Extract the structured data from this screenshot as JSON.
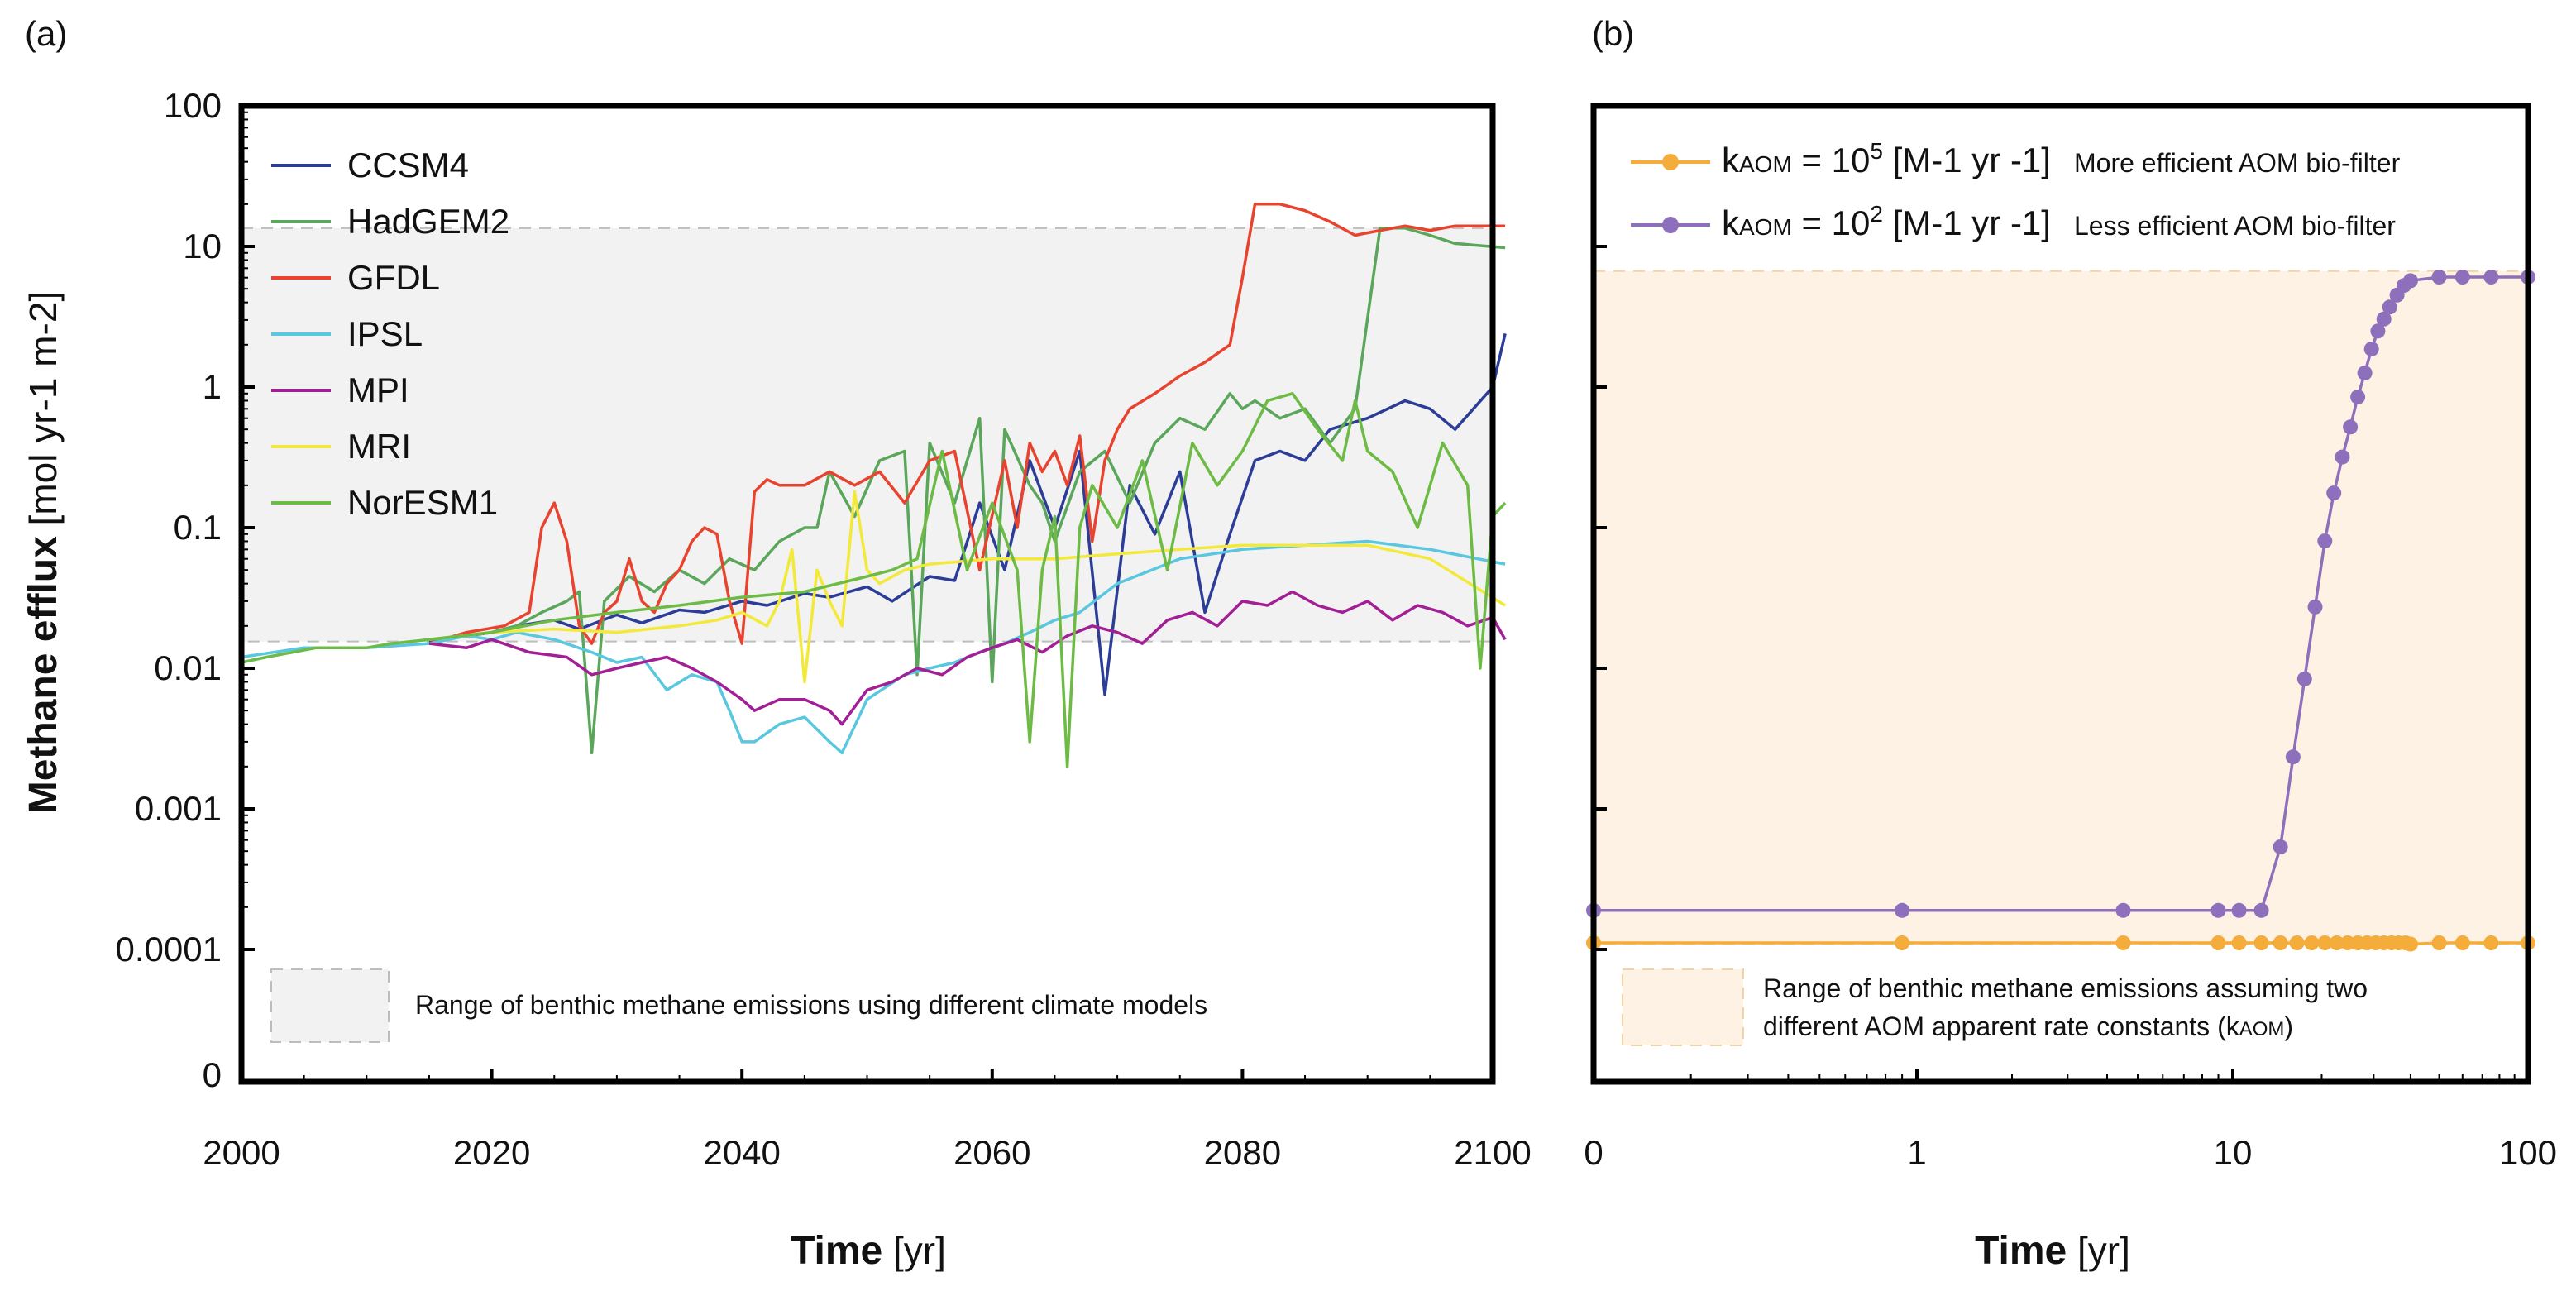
{
  "colors": {
    "CCSM4": "#2b3d97",
    "HadGEM2": "#5aa65a",
    "GFDL": "#e8432f",
    "IPSL": "#58c7df",
    "MPI": "#a21f96",
    "MRI": "#f2e93a",
    "NorESM1": "#6dbb45",
    "kaom_high": "#f4ac3a",
    "kaom_low": "#8e6fbb",
    "range_a": "#f2f2f2",
    "range_b": "#fdf2e4"
  },
  "chart_data": [
    {
      "type": "line",
      "panel_label": "(a)",
      "xlabel_bold": "Time",
      "xlabel_unit": " [yr]",
      "ylabel_bold": "Methane efflux",
      "ylabel_unit": " [mol yr-1 m-2]",
      "xlim": [
        2000,
        2100
      ],
      "x_ticks": [
        "2000",
        "2020",
        "2040",
        "2060",
        "2080",
        "2100"
      ],
      "y_scale": "log",
      "y_ticks": [
        "100",
        "10",
        "1",
        "0.1",
        "0.01",
        "0.001",
        "0.0001",
        "0"
      ],
      "range_band": [
        0.0155,
        13.5
      ],
      "range_label": "Range of benthic methane  emissions using different climate models",
      "legend_position": "top-left",
      "series": [
        {
          "name": "CCSM4",
          "x": [
            2015,
            2020,
            2022,
            2025,
            2027,
            2030,
            2032,
            2035,
            2037,
            2040,
            2042,
            2045,
            2047,
            2050,
            2052,
            2055,
            2057,
            2059,
            2061,
            2063,
            2065,
            2067,
            2069,
            2071,
            2073,
            2075,
            2077,
            2079,
            2081,
            2083,
            2085,
            2087,
            2090,
            2093,
            2095,
            2097,
            2100,
            2101
          ],
          "values": [
            0.0155,
            0.018,
            0.02,
            0.022,
            0.019,
            0.024,
            0.021,
            0.026,
            0.025,
            0.03,
            0.028,
            0.034,
            0.032,
            0.038,
            0.03,
            0.045,
            0.042,
            0.15,
            0.05,
            0.3,
            0.1,
            0.35,
            0.0065,
            0.2,
            0.09,
            0.25,
            0.025,
            0.09,
            0.3,
            0.35,
            0.3,
            0.5,
            0.6,
            0.8,
            0.7,
            0.5,
            1.0,
            2.4
          ]
        },
        {
          "name": "HadGEM2",
          "x": [
            2015,
            2018,
            2020,
            2022,
            2024,
            2026,
            2027,
            2028,
            2029,
            2031,
            2033,
            2035,
            2037,
            2039,
            2041,
            2043,
            2045,
            2046,
            2047,
            2049,
            2051,
            2053,
            2054,
            2055,
            2057,
            2059,
            2060,
            2061,
            2063,
            2064,
            2065,
            2067,
            2069,
            2071,
            2073,
            2075,
            2077,
            2079,
            2080,
            2081,
            2083,
            2085,
            2087,
            2089,
            2091,
            2093,
            2095,
            2097,
            2101
          ],
          "values": [
            0.016,
            0.017,
            0.018,
            0.02,
            0.025,
            0.03,
            0.035,
            0.0025,
            0.03,
            0.045,
            0.035,
            0.05,
            0.04,
            0.06,
            0.05,
            0.08,
            0.1,
            0.1,
            0.25,
            0.12,
            0.3,
            0.35,
            0.009,
            0.4,
            0.15,
            0.6,
            0.008,
            0.5,
            0.2,
            0.15,
            0.08,
            0.25,
            0.35,
            0.15,
            0.4,
            0.6,
            0.5,
            0.9,
            0.7,
            0.8,
            0.6,
            0.7,
            0.4,
            0.7,
            13.5,
            13.5,
            12,
            10.5,
            9.8
          ]
        },
        {
          "name": "GFDL",
          "x": [
            2015,
            2018,
            2021,
            2023,
            2024,
            2025,
            2026,
            2027,
            2028,
            2029,
            2030,
            2031,
            2032,
            2033,
            2034,
            2035,
            2036,
            2037,
            2038,
            2039,
            2040,
            2041,
            2042,
            2043,
            2045,
            2047,
            2049,
            2051,
            2053,
            2055,
            2057,
            2059,
            2061,
            2062,
            2063,
            2064,
            2065,
            2066,
            2067,
            2068,
            2069,
            2070,
            2071,
            2073,
            2075,
            2077,
            2079,
            2080,
            2081,
            2083,
            2085,
            2087,
            2089,
            2091,
            2093,
            2095,
            2097,
            2099,
            2101
          ],
          "values": [
            0.015,
            0.018,
            0.02,
            0.025,
            0.1,
            0.15,
            0.08,
            0.02,
            0.015,
            0.025,
            0.03,
            0.06,
            0.03,
            0.025,
            0.04,
            0.05,
            0.08,
            0.1,
            0.09,
            0.03,
            0.015,
            0.18,
            0.22,
            0.2,
            0.2,
            0.25,
            0.2,
            0.25,
            0.15,
            0.3,
            0.35,
            0.05,
            0.3,
            0.1,
            0.4,
            0.25,
            0.35,
            0.2,
            0.45,
            0.08,
            0.3,
            0.5,
            0.7,
            0.9,
            1.2,
            1.5,
            2.0,
            6.0,
            20,
            20,
            18,
            15,
            12,
            13,
            14,
            13,
            14,
            14,
            14
          ]
        },
        {
          "name": "IPSL",
          "x": [
            2000,
            2005,
            2010,
            2015,
            2018,
            2020,
            2022,
            2025,
            2028,
            2030,
            2032,
            2034,
            2036,
            2038,
            2039,
            2040,
            2041,
            2043,
            2045,
            2047,
            2048,
            2050,
            2053,
            2055,
            2057,
            2059,
            2061,
            2063,
            2065,
            2067,
            2070,
            2075,
            2080,
            2085,
            2090,
            2095,
            2101
          ],
          "values": [
            0.012,
            0.014,
            0.014,
            0.015,
            0.017,
            0.016,
            0.018,
            0.016,
            0.013,
            0.011,
            0.012,
            0.007,
            0.009,
            0.008,
            0.005,
            0.003,
            0.003,
            0.004,
            0.0045,
            0.003,
            0.0025,
            0.006,
            0.009,
            0.01,
            0.011,
            0.013,
            0.015,
            0.018,
            0.022,
            0.025,
            0.04,
            0.06,
            0.07,
            0.075,
            0.08,
            0.07,
            0.055
          ]
        },
        {
          "name": "MPI",
          "x": [
            2015,
            2018,
            2020,
            2023,
            2026,
            2028,
            2030,
            2032,
            2034,
            2036,
            2038,
            2040,
            2041,
            2043,
            2045,
            2047,
            2048,
            2050,
            2052,
            2054,
            2056,
            2058,
            2060,
            2062,
            2064,
            2066,
            2068,
            2070,
            2072,
            2074,
            2076,
            2078,
            2080,
            2082,
            2084,
            2086,
            2088,
            2090,
            2092,
            2094,
            2096,
            2098,
            2100,
            2101
          ],
          "values": [
            0.015,
            0.014,
            0.016,
            0.013,
            0.012,
            0.009,
            0.01,
            0.011,
            0.012,
            0.01,
            0.008,
            0.006,
            0.005,
            0.006,
            0.006,
            0.005,
            0.004,
            0.007,
            0.008,
            0.01,
            0.009,
            0.012,
            0.014,
            0.016,
            0.013,
            0.017,
            0.02,
            0.018,
            0.015,
            0.022,
            0.025,
            0.02,
            0.03,
            0.028,
            0.035,
            0.028,
            0.025,
            0.03,
            0.022,
            0.028,
            0.025,
            0.02,
            0.023,
            0.016
          ]
        },
        {
          "name": "MRI",
          "x": [
            2015,
            2020,
            2025,
            2030,
            2035,
            2038,
            2040,
            2042,
            2043,
            2044,
            2045,
            2046,
            2047,
            2048,
            2049,
            2050,
            2051,
            2053,
            2055,
            2060,
            2065,
            2070,
            2075,
            2080,
            2085,
            2090,
            2095,
            2101
          ],
          "values": [
            0.016,
            0.018,
            0.019,
            0.018,
            0.02,
            0.022,
            0.025,
            0.02,
            0.03,
            0.07,
            0.008,
            0.05,
            0.03,
            0.02,
            0.18,
            0.05,
            0.04,
            0.05,
            0.055,
            0.06,
            0.06,
            0.065,
            0.07,
            0.075,
            0.075,
            0.075,
            0.06,
            0.028
          ]
        },
        {
          "name": "NorESM1",
          "x": [
            2000,
            2002,
            2006,
            2010,
            2012,
            2015,
            2020,
            2025,
            2030,
            2035,
            2040,
            2045,
            2050,
            2052,
            2054,
            2056,
            2058,
            2060,
            2062,
            2063,
            2064,
            2065,
            2066,
            2067,
            2068,
            2070,
            2072,
            2074,
            2076,
            2078,
            2080,
            2082,
            2084,
            2086,
            2088,
            2089,
            2090,
            2092,
            2094,
            2096,
            2098,
            2099,
            2100,
            2101
          ],
          "values": [
            0.011,
            0.012,
            0.014,
            0.014,
            0.015,
            0.016,
            0.018,
            0.022,
            0.025,
            0.028,
            0.032,
            0.035,
            0.045,
            0.05,
            0.06,
            0.35,
            0.05,
            0.15,
            0.05,
            0.003,
            0.05,
            0.12,
            0.002,
            0.1,
            0.2,
            0.1,
            0.3,
            0.05,
            0.4,
            0.2,
            0.35,
            0.8,
            0.9,
            0.5,
            0.3,
            0.8,
            0.35,
            0.25,
            0.1,
            0.4,
            0.2,
            0.01,
            0.12,
            0.15
          ]
        }
      ]
    },
    {
      "type": "line",
      "panel_label": "(b)",
      "xlabel_bold": "Time",
      "xlabel_unit": " [yr]",
      "x_scale": "log",
      "x_ticks": [
        "0",
        "1",
        "10",
        "100"
      ],
      "ylabel": "",
      "range_label_line1": "Range of benthic methane emissions assuming two",
      "range_label_line2_pre": "different  AOM apparent  rate constants (k",
      "range_label_line2_sub": "AOM",
      "range_label_line2_post": ")",
      "legend_position": "top-left",
      "series": [
        {
          "name": "kAOM = 10^5",
          "k_prefix": "k",
          "k_sub": "AOM",
          "k_mid": " = 10",
          "k_exp": "5",
          "k_unit": " [M-1 yr -1]",
          "note": "More efficient AOM bio-filter",
          "x": [
            0.1,
            0.9,
            4.5,
            9,
            10.5,
            12.5,
            14.5,
            16.5,
            18.5,
            20.5,
            22.5,
            24.5,
            26.5,
            28.5,
            30.5,
            32.5,
            34.5,
            36.5,
            38.5,
            40,
            50,
            60,
            75,
            100
          ],
          "values": [
            1,
            1,
            1,
            1,
            1,
            1,
            1,
            1,
            1,
            1,
            1,
            1,
            1,
            1,
            1,
            1,
            1,
            1,
            1,
            0.99,
            1,
            1,
            1,
            1
          ]
        },
        {
          "name": "kAOM = 10^2",
          "k_prefix": "k",
          "k_sub": "AOM",
          "k_mid": " = 10",
          "k_exp": "2",
          "k_unit": " [M-1 yr -1]",
          "note": "Less efficient AOM bio-filter",
          "x": [
            0.1,
            0.9,
            4.5,
            9,
            10.5,
            12.5,
            14.5,
            16,
            17.5,
            19,
            20.5,
            22,
            23.5,
            25,
            26.5,
            28,
            29.5,
            31,
            32.5,
            34,
            36,
            38,
            40,
            50,
            60,
            75,
            100
          ],
          "values": [
            1.27,
            1.27,
            1.27,
            1.27,
            1.27,
            1.27,
            1.8,
            2.55,
            3.2,
            3.8,
            4.35,
            4.75,
            5.05,
            5.3,
            5.55,
            5.75,
            5.95,
            6.1,
            6.2,
            6.3,
            6.4,
            6.48,
            6.52,
            6.55,
            6.55,
            6.55,
            6.55
          ]
        }
      ]
    }
  ]
}
